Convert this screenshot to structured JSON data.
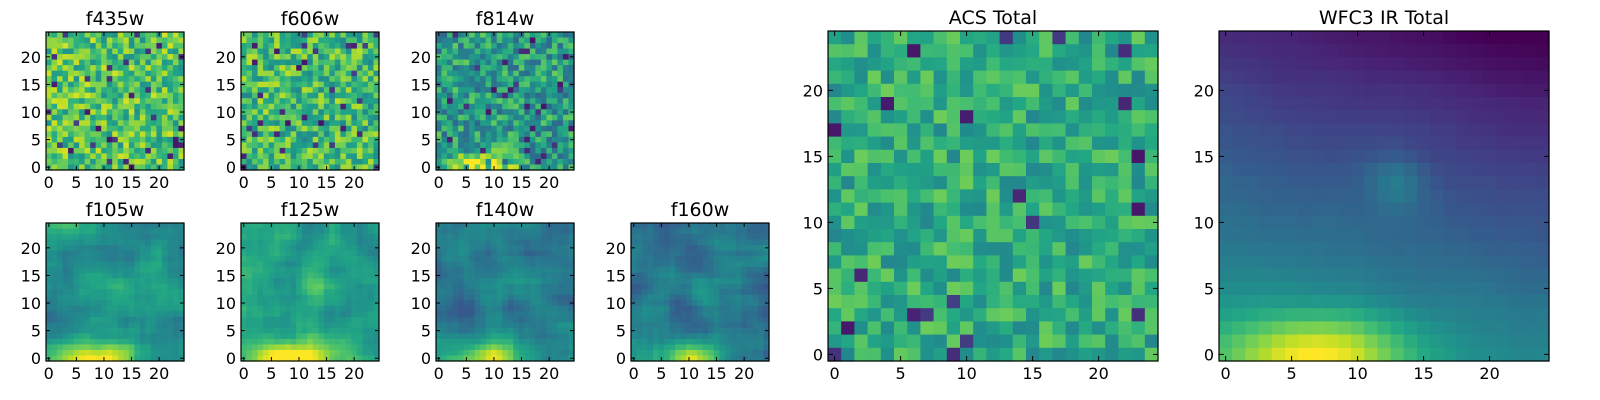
{
  "figure": {
    "colormap": "viridis",
    "background": "#ffffff"
  },
  "chart_data": [
    {
      "type": "heatmap",
      "id": "f435w",
      "title": "f435w",
      "grid": 25,
      "xlim": [
        0,
        24
      ],
      "ylim": [
        0,
        24
      ],
      "xticks": [
        "0",
        "5",
        "10",
        "15",
        "20"
      ],
      "yticks": [
        "0",
        "5",
        "10",
        "15",
        "20"
      ],
      "pattern": "noise",
      "base": 0.72,
      "spread": 0.22,
      "seed": 11
    },
    {
      "type": "heatmap",
      "id": "f606w",
      "title": "f606w",
      "grid": 25,
      "xlim": [
        0,
        24
      ],
      "ylim": [
        0,
        24
      ],
      "xticks": [
        "0",
        "5",
        "10",
        "15",
        "20"
      ],
      "yticks": [
        "0",
        "5",
        "10",
        "15",
        "20"
      ],
      "pattern": "noise",
      "base": 0.68,
      "spread": 0.22,
      "seed": 23
    },
    {
      "type": "heatmap",
      "id": "f814w",
      "title": "f814w",
      "grid": 25,
      "xlim": [
        0,
        24
      ],
      "ylim": [
        0,
        24
      ],
      "xticks": [
        "0",
        "5",
        "10",
        "15",
        "20"
      ],
      "yticks": [
        "0",
        "5",
        "10",
        "15",
        "20"
      ],
      "pattern": "noise-source",
      "base": 0.55,
      "spread": 0.22,
      "seed": 37
    },
    {
      "type": "heatmap",
      "id": "f105w",
      "title": "f105w",
      "grid": 25,
      "xlim": [
        0,
        24
      ],
      "ylim": [
        0,
        24
      ],
      "xticks": [
        "0",
        "5",
        "10",
        "15",
        "20"
      ],
      "yticks": [
        "0",
        "5",
        "10",
        "15",
        "20"
      ],
      "pattern": "smooth-source",
      "base": 0.5,
      "spread": 0.18,
      "seed": 41
    },
    {
      "type": "heatmap",
      "id": "f125w",
      "title": "f125w",
      "grid": 25,
      "xlim": [
        0,
        24
      ],
      "ylim": [
        0,
        24
      ],
      "xticks": [
        "0",
        "5",
        "10",
        "15",
        "20"
      ],
      "yticks": [
        "0",
        "5",
        "10",
        "15",
        "20"
      ],
      "pattern": "smooth-source",
      "base": 0.55,
      "spread": 0.18,
      "seed": 53
    },
    {
      "type": "heatmap",
      "id": "f140w",
      "title": "f140w",
      "grid": 25,
      "xlim": [
        0,
        24
      ],
      "ylim": [
        0,
        24
      ],
      "xticks": [
        "0",
        "5",
        "10",
        "15",
        "20"
      ],
      "yticks": [
        "0",
        "5",
        "10",
        "15",
        "20"
      ],
      "pattern": "smooth-source",
      "base": 0.42,
      "spread": 0.18,
      "seed": 67
    },
    {
      "type": "heatmap",
      "id": "f160w",
      "title": "f160w",
      "grid": 25,
      "xlim": [
        0,
        24
      ],
      "ylim": [
        0,
        24
      ],
      "xticks": [
        "0",
        "5",
        "10",
        "15",
        "20"
      ],
      "yticks": [
        "0",
        "5",
        "10",
        "15",
        "20"
      ],
      "pattern": "smooth-source",
      "base": 0.4,
      "spread": 0.18,
      "seed": 79
    },
    {
      "type": "heatmap",
      "id": "acs-total",
      "title": "ACS Total",
      "grid": 25,
      "xlim": [
        0,
        24
      ],
      "ylim": [
        0,
        24
      ],
      "xticks": [
        "0",
        "5",
        "10",
        "15",
        "20"
      ],
      "yticks": [
        "0",
        "5",
        "10",
        "15",
        "20"
      ],
      "pattern": "noise",
      "base": 0.62,
      "spread": 0.16,
      "seed": 97
    },
    {
      "type": "heatmap",
      "id": "wfc3-ir-total",
      "title": "WFC3 IR Total",
      "grid": 25,
      "xlim": [
        0,
        24
      ],
      "ylim": [
        0,
        24
      ],
      "xticks": [
        "0",
        "5",
        "10",
        "15",
        "20"
      ],
      "yticks": [
        "0",
        "5",
        "10",
        "15",
        "20"
      ],
      "pattern": "gradient-source",
      "base": 0.35,
      "spread": 0.06,
      "seed": 101
    }
  ]
}
